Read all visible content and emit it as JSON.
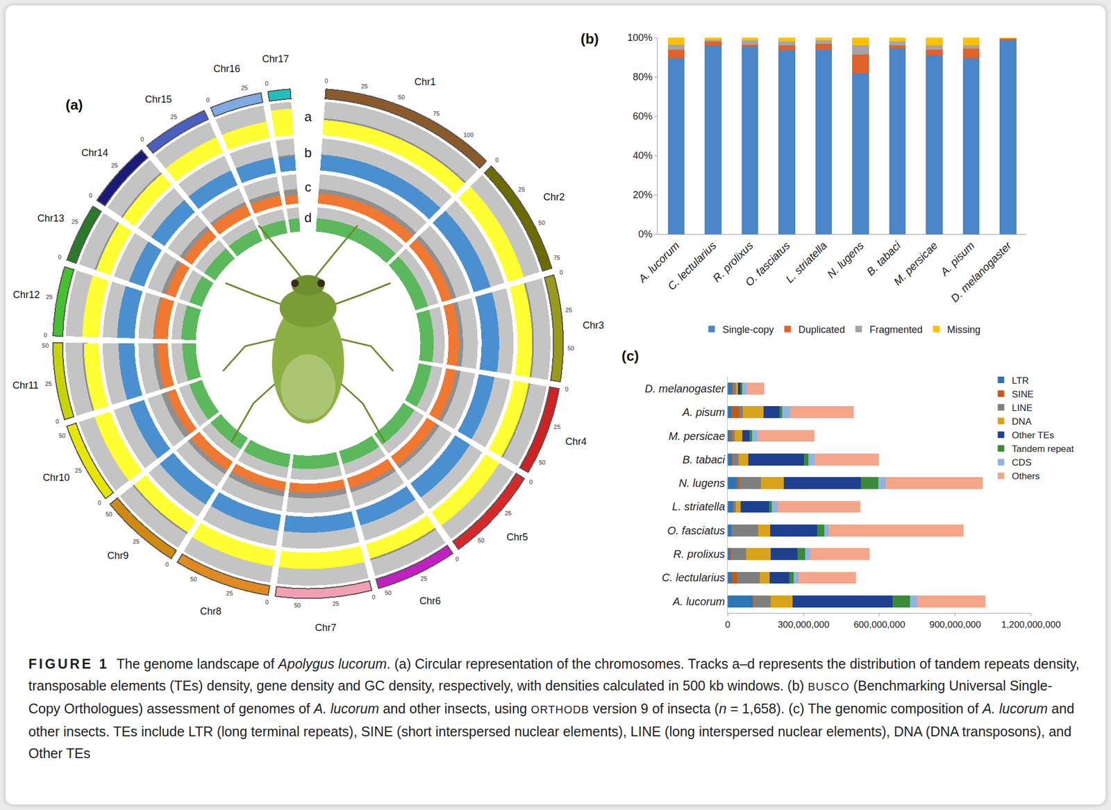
{
  "chart_data": [
    {
      "type": "circos",
      "title": "(a)",
      "chromosomes": [
        {
          "name": "Chr1",
          "length": 120,
          "color": "#8b5a2b"
        },
        {
          "name": "Chr2",
          "length": 80,
          "color": "#6b6b00"
        },
        {
          "name": "Chr3",
          "length": 72,
          "color": "#9a9a1a"
        },
        {
          "name": "Chr4",
          "length": 60,
          "color": "#cc2222"
        },
        {
          "name": "Chr5",
          "length": 65,
          "color": "#d42a2a"
        },
        {
          "name": "Chr6",
          "length": 55,
          "color": "#c020c0"
        },
        {
          "name": "Chr7",
          "length": 65,
          "color": "#f0a0b0"
        },
        {
          "name": "Chr8",
          "length": 65,
          "color": "#e08a20"
        },
        {
          "name": "Chr9",
          "length": 55,
          "color": "#d08a10"
        },
        {
          "name": "Chr10",
          "length": 55,
          "color": "#e6e600"
        },
        {
          "name": "Chr11",
          "length": 52,
          "color": "#c8d400"
        },
        {
          "name": "Chr12",
          "length": 47,
          "color": "#44c030"
        },
        {
          "name": "Chr13",
          "length": 40,
          "color": "#2a7a2a"
        },
        {
          "name": "Chr14",
          "length": 45,
          "color": "#1a1a7a"
        },
        {
          "name": "Chr15",
          "length": 45,
          "color": "#4a5fc0"
        },
        {
          "name": "Chr16",
          "length": 35,
          "color": "#7faae0"
        },
        {
          "name": "Chr17",
          "length": 15,
          "color": "#20c0c0"
        }
      ],
      "ticks": [
        0,
        25,
        50,
        75,
        100
      ],
      "ylim": [
        0,
        1
      ],
      "tracks": [
        {
          "label": "a",
          "color": "#ffff33",
          "values": [
            0.45,
            0.5,
            0.45,
            0.45,
            0.5,
            0.45,
            0.5,
            0.5,
            0.45,
            0.5,
            0.45,
            0.5,
            0.45,
            0.45,
            0.5,
            0.5,
            0.8
          ]
        },
        {
          "label": "b",
          "color": "#4a90d0",
          "values": [
            0.5,
            0.55,
            0.55,
            0.5,
            0.55,
            0.5,
            0.5,
            0.5,
            0.55,
            0.5,
            0.5,
            0.55,
            0.5,
            0.5,
            0.5,
            0.5,
            0.45
          ]
        },
        {
          "label": "c",
          "color": "#f07830",
          "values": [
            0.35,
            0.35,
            0.35,
            0.35,
            0.35,
            0.35,
            0.3,
            0.3,
            0.35,
            0.3,
            0.35,
            0.45,
            0.35,
            0.35,
            0.4,
            0.35,
            0.3
          ]
        },
        {
          "label": "d",
          "color": "#5cb85c",
          "values": [
            0.55,
            0.55,
            0.55,
            0.55,
            0.55,
            0.55,
            0.55,
            0.55,
            0.55,
            0.55,
            0.55,
            0.6,
            0.55,
            0.55,
            0.55,
            0.55,
            0.55
          ]
        }
      ]
    },
    {
      "type": "bar",
      "title": "(b)",
      "stacked": true,
      "grid": false,
      "legend": "bottom",
      "categories": [
        "A. lucorum",
        "C. lectularius",
        "R. prolixus",
        "O. fasciatus",
        "L. striatella",
        "N. lugens",
        "B. tabaci",
        "M. persicae",
        "A. pisum",
        "D. melanogaster"
      ],
      "series": [
        {
          "name": "Single-copy",
          "color": "#4a86c8",
          "values": [
            89.5,
            96,
            95.5,
            93.5,
            94,
            82,
            94.5,
            91,
            89.5,
            98.7
          ]
        },
        {
          "name": "Duplicated",
          "color": "#e0622a",
          "values": [
            4.5,
            2,
            1,
            2.5,
            3,
            9.5,
            1.5,
            3,
            5,
            0.7
          ]
        },
        {
          "name": "Fragmented",
          "color": "#a5a5a5",
          "values": [
            2.5,
            1,
            2,
            2,
            1.5,
            4.5,
            2,
            2,
            1.5,
            0.2
          ]
        },
        {
          "name": "Missing",
          "color": "#ffc000",
          "values": [
            3.5,
            1,
            1.5,
            2,
            1.5,
            4,
            2,
            4,
            4,
            0.4
          ]
        }
      ],
      "ylim": [
        0,
        100
      ],
      "yticks": [
        {
          "value": 0,
          "label": "0%"
        },
        {
          "value": 20,
          "label": "20%"
        },
        {
          "value": 40,
          "label": "40%"
        },
        {
          "value": 60,
          "label": "60%"
        },
        {
          "value": 80,
          "label": "80%"
        },
        {
          "value": 100,
          "label": "100%"
        }
      ]
    },
    {
      "type": "bar",
      "title": "(c)",
      "orientation": "horizontal",
      "stacked": true,
      "grid": false,
      "legend": "upper right",
      "categories": [
        "D. melanogaster",
        "A. pisum",
        "M. persicae",
        "B. tabaci",
        "N. lugens",
        "L. striatella",
        "O. fasciatus",
        "R. prolixus",
        "C. lectularius",
        "A. lucorum"
      ],
      "series": [
        {
          "name": "LTR",
          "color": "#2e75b6",
          "values": [
            17000000,
            14000000,
            8000000,
            17000000,
            36000000,
            22000000,
            14000000,
            8000000,
            17000000,
            98000000
          ]
        },
        {
          "name": "SINE",
          "color": "#c55a11",
          "values": [
            1000000,
            31000000,
            8000000,
            1000000,
            8000000,
            2000000,
            1000000,
            6000000,
            20000000,
            2000000
          ]
        },
        {
          "name": "LINE",
          "color": "#7f7f7f",
          "values": [
            14000000,
            14000000,
            11000000,
            25000000,
            87000000,
            8000000,
            106000000,
            59000000,
            90000000,
            70000000
          ]
        },
        {
          "name": "DNA",
          "color": "#d9a21b",
          "values": [
            8000000,
            84000000,
            31000000,
            39000000,
            90000000,
            20000000,
            48000000,
            98000000,
            39000000,
            87000000
          ]
        },
        {
          "name": "Other TEs",
          "color": "#1f3f8f",
          "values": [
            11000000,
            62000000,
            28000000,
            221000000,
            305000000,
            112000000,
            185000000,
            104000000,
            78000000,
            395000000
          ]
        },
        {
          "name": "Tandem repeat",
          "color": "#3a8a3a",
          "values": [
            6000000,
            11000000,
            11000000,
            17000000,
            70000000,
            10000000,
            28000000,
            31000000,
            17000000,
            70000000
          ]
        },
        {
          "name": "CDS",
          "color": "#8fb4e3",
          "values": [
            17000000,
            31000000,
            22000000,
            22000000,
            28000000,
            25000000,
            17000000,
            20000000,
            20000000,
            28000000
          ]
        },
        {
          "name": "Others",
          "color": "#f4a58a",
          "values": [
            70000000,
            252000000,
            224000000,
            255000000,
            384000000,
            325000000,
            535000000,
            235000000,
            227000000,
            269000000
          ]
        }
      ],
      "xlim": [
        0,
        1200000000
      ],
      "xticks": [
        0,
        {
          "value": 300000000,
          "label": "300,000,000"
        },
        {
          "value": 600000000,
          "label": "600,000,000"
        },
        {
          "value": 900000000,
          "label": "900,000,000"
        },
        {
          "value": 1200000000,
          "label": "1,200,000,000"
        }
      ]
    }
  ],
  "caption": {
    "label": "FIGURE 1",
    "runs": [
      {
        "text": "The genome landscape of "
      },
      {
        "text": "Apolygus lucorum",
        "italic": true
      },
      {
        "text": ". (a) Circular representation of the chromosomes. Tracks a–d represents the distribution of tandem repeats density, transposable elements (TEs) density, gene density and GC density, respectively, with densities calculated in 500 kb windows. (b) "
      },
      {
        "text": "BUSCO",
        "smallcaps": true
      },
      {
        "text": " (Benchmarking Universal Single-Copy Orthologues) assessment of genomes of "
      },
      {
        "text": "A. lucorum",
        "italic": true
      },
      {
        "text": " and other insects, using "
      },
      {
        "text": "ORTHODB",
        "smallcaps": true
      },
      {
        "text": " version 9 of insecta ("
      },
      {
        "text": "n",
        "italic": true
      },
      {
        "text": " = 1,658). (c) The genomic composition of "
      },
      {
        "text": "A. lucorum",
        "italic": true
      },
      {
        "text": " and other insects. TEs include LTR (long terminal repeats), SINE (short interspersed nuclear elements), LINE (long interspersed nuclear elements), DNA (DNA transposons), and Other TEs"
      }
    ]
  }
}
